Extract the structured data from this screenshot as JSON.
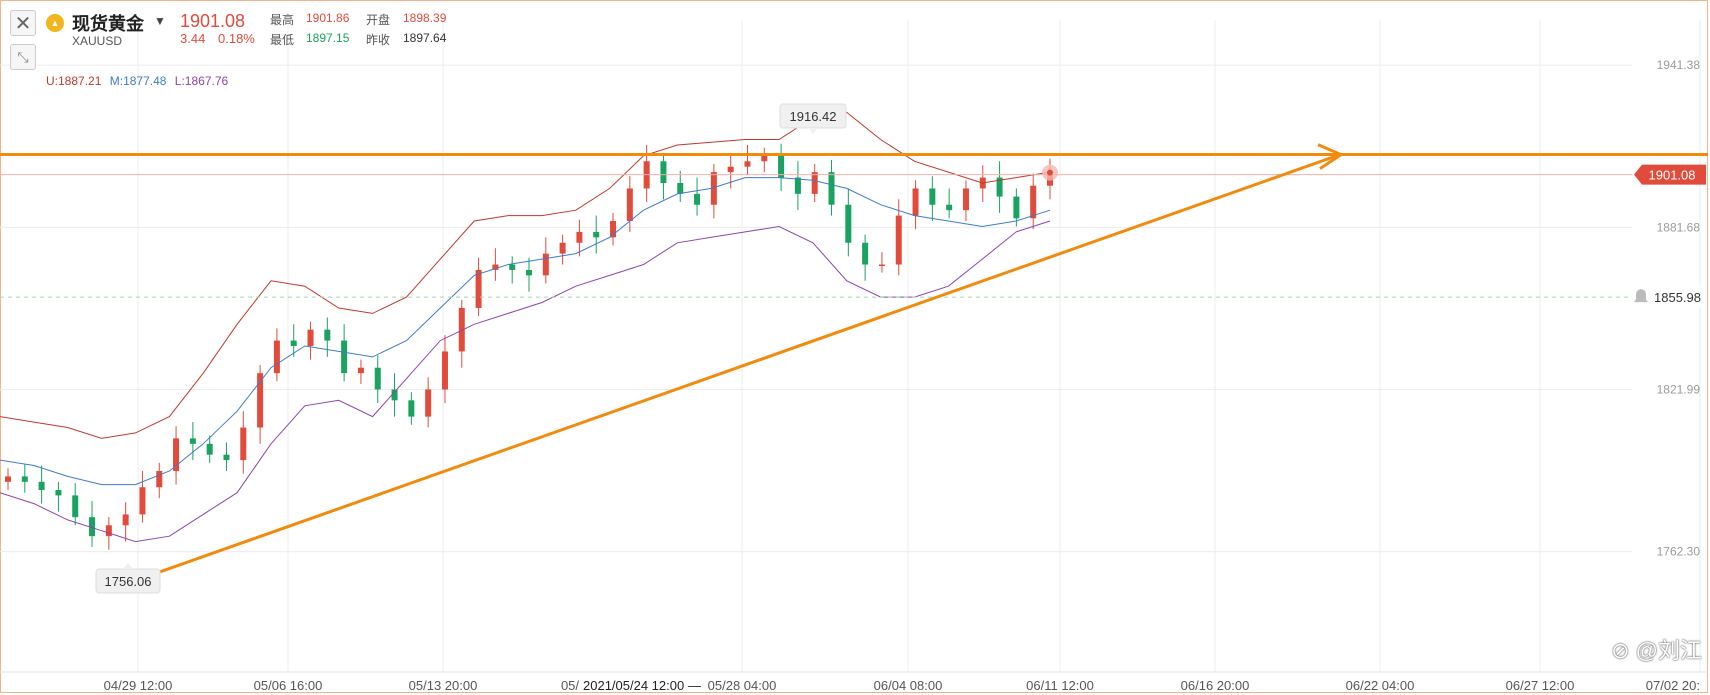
{
  "header": {
    "close_label": "✕",
    "shrink_label": "⤡",
    "symbol_name": "现货黄金",
    "symbol_code": "XAUUSD",
    "last_price": "1901.08",
    "change": "3.44",
    "change_pct": "0.18%",
    "high_label": "最高",
    "high_value": "1901.86",
    "open_label": "开盘",
    "open_value": "1898.39",
    "low_label": "最低",
    "low_value": "1897.15",
    "prev_close_label": "昨收",
    "prev_close_value": "1897.64"
  },
  "indicator": {
    "upper": "U:1887.21",
    "middle": "M:1877.48",
    "lower": "L:1867.76"
  },
  "colors": {
    "up": "#e04b3c",
    "down": "#1aa260",
    "upper_band": "#c0392b",
    "middle_band": "#3d7cc9",
    "lower_band": "#8e44ad",
    "drawing": "#f28a0d",
    "grid": "#ececec"
  },
  "chart_data": {
    "type": "candlestick",
    "symbol": "XAUUSD",
    "y_ticks": [
      1941.38,
      1881.68,
      1821.99,
      1762.3
    ],
    "ylim": [
      1718,
      1958
    ],
    "x_ticks": [
      "04/29 12:00",
      "05/06 16:00",
      "05/13 20:00",
      "05/",
      "2021/05/24 12:00 —",
      "05/28 04:00",
      "06/04 08:00",
      "06/11 12:00",
      "06/16 20:00",
      "06/22 04:00",
      "06/27 12:00",
      "07/02 20:"
    ],
    "current_price_label": "1901.08",
    "alert_price_label": "1855.98",
    "annotation_high": "1916.42",
    "annotation_low": "1756.06",
    "closes_path": [
      1790,
      1788,
      1785,
      1783,
      1775,
      1768,
      1772,
      1776,
      1786,
      1792,
      1804,
      1802,
      1798,
      1796,
      1808,
      1828,
      1840,
      1838,
      1844,
      1840,
      1828,
      1830,
      1822,
      1818,
      1812,
      1822,
      1836,
      1852,
      1866,
      1868,
      1866,
      1864,
      1872,
      1876,
      1880,
      1878,
      1884,
      1896,
      1906,
      1898,
      1894,
      1890,
      1902,
      1904,
      1906,
      1908,
      1900,
      1894,
      1902,
      1890,
      1876,
      1868,
      1868,
      1886,
      1896,
      1890,
      1888,
      1896,
      1900,
      1893,
      1885,
      1897,
      1901
    ],
    "upper_band_path": [
      1812,
      1810,
      1808,
      1804,
      1806,
      1812,
      1828,
      1846,
      1862,
      1860,
      1852,
      1850,
      1856,
      1870,
      1884,
      1886,
      1886,
      1888,
      1896,
      1908,
      1912,
      1913,
      1914,
      1914,
      1922,
      1924,
      1914,
      1906,
      1902,
      1898,
      1900,
      1902
    ],
    "middle_band_path": [
      1796,
      1794,
      1790,
      1787,
      1787,
      1792,
      1802,
      1814,
      1830,
      1838,
      1836,
      1834,
      1840,
      1852,
      1864,
      1868,
      1870,
      1872,
      1878,
      1888,
      1894,
      1896,
      1900,
      1900,
      1899,
      1896,
      1890,
      1886,
      1884,
      1882,
      1884,
      1888
    ],
    "lower_band_path": [
      1784,
      1780,
      1774,
      1770,
      1766,
      1768,
      1776,
      1784,
      1802,
      1816,
      1818,
      1812,
      1826,
      1840,
      1846,
      1850,
      1854,
      1860,
      1864,
      1868,
      1876,
      1878,
      1880,
      1882,
      1876,
      1862,
      1856,
      1856,
      1860,
      1870,
      1880,
      1884
    ],
    "horizontal_resistance": 1908.5,
    "trendline": {
      "from": "1756.06",
      "to": "06/22 04:00"
    }
  }
}
